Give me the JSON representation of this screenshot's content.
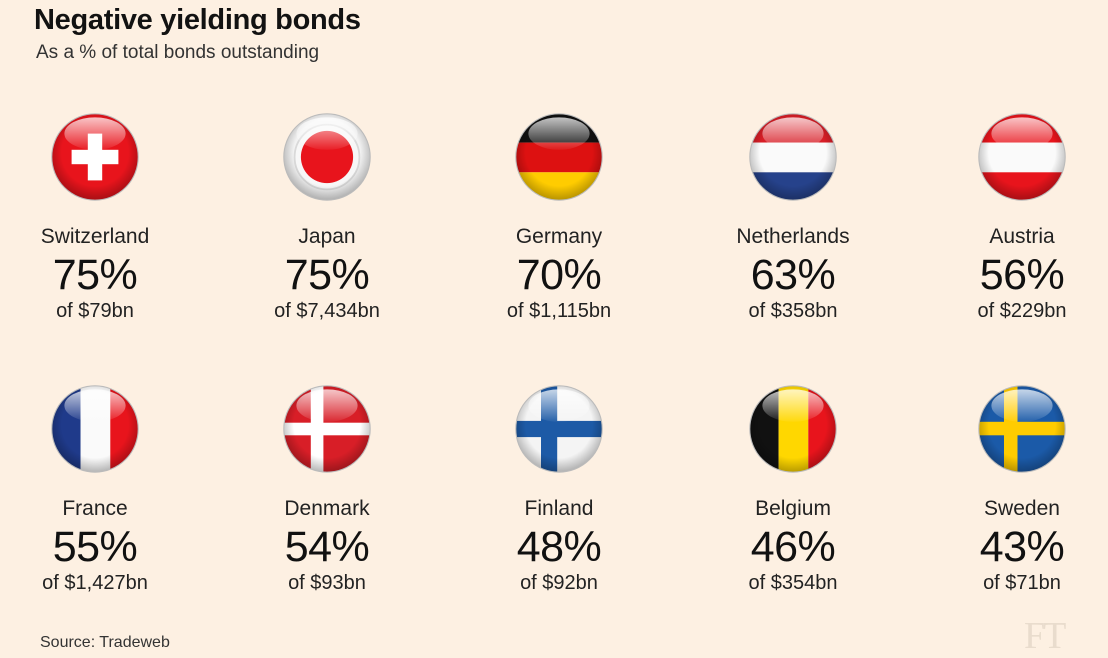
{
  "chart_data": {
    "type": "table",
    "title": "Negative yielding bonds",
    "subtitle": "As a % of total bonds outstanding",
    "unit": "%",
    "series": [
      {
        "country": "Switzerland",
        "flag": "switzerland-flag-icon",
        "percent": 75,
        "percent_label": "75%",
        "total_label": "of $79bn"
      },
      {
        "country": "Japan",
        "flag": "japan-flag-icon",
        "percent": 75,
        "percent_label": "75%",
        "total_label": "of $7,434bn"
      },
      {
        "country": "Germany",
        "flag": "germany-flag-icon",
        "percent": 70,
        "percent_label": "70%",
        "total_label": "of $1,115bn"
      },
      {
        "country": "Netherlands",
        "flag": "netherlands-flag-icon",
        "percent": 63,
        "percent_label": "63%",
        "total_label": "of $358bn"
      },
      {
        "country": "Austria",
        "flag": "austria-flag-icon",
        "percent": 56,
        "percent_label": "56%",
        "total_label": "of $229bn"
      },
      {
        "country": "France",
        "flag": "france-flag-icon",
        "percent": 55,
        "percent_label": "55%",
        "total_label": "of $1,427bn"
      },
      {
        "country": "Denmark",
        "flag": "denmark-flag-icon",
        "percent": 54,
        "percent_label": "54%",
        "total_label": "of $93bn"
      },
      {
        "country": "Finland",
        "flag": "finland-flag-icon",
        "percent": 48,
        "percent_label": "48%",
        "total_label": "of $92bn"
      },
      {
        "country": "Belgium",
        "flag": "belgium-flag-icon",
        "percent": 46,
        "percent_label": "46%",
        "total_label": "of $354bn"
      },
      {
        "country": "Sweden",
        "flag": "sweden-flag-icon",
        "percent": 43,
        "percent_label": "43%",
        "total_label": "of $71bn"
      }
    ],
    "source": "Source: Tradeweb"
  },
  "publisher_logo": "FT"
}
